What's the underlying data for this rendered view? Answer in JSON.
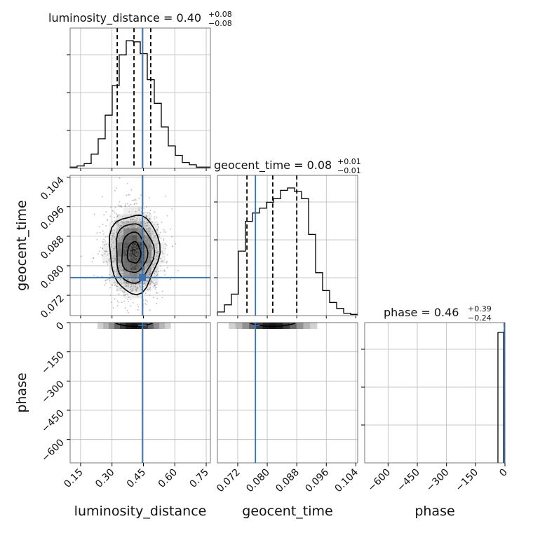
{
  "chart_data": {
    "type": "corner",
    "truth_color": "#3b73b0",
    "parameters": [
      {
        "name": "luminosity_distance",
        "title": "luminosity_distance = 0.40",
        "title_plus": "+0.08",
        "title_minus": "−0.08",
        "xlabel": "luminosity_distance",
        "range": [
          0.1,
          0.77
        ],
        "ticks": [
          0.15,
          0.3,
          0.45,
          0.6,
          0.75
        ],
        "tick_labels": [
          "0.15",
          "0.30",
          "0.45",
          "0.60",
          "0.75"
        ],
        "quantiles": [
          0.325,
          0.405,
          0.485
        ],
        "truth": 0.445,
        "hist": {
          "edges_start": 0.1,
          "bin_width": 0.0335,
          "counts": [
            1,
            2,
            4,
            12,
            25,
            45,
            70,
            96,
            108,
            107,
            97,
            75,
            55,
            35,
            19,
            11,
            5,
            3,
            1,
            1
          ]
        }
      },
      {
        "name": "geocent_time",
        "title": "geocent_time = 0.08",
        "title_plus": "+0.01",
        "title_minus": "−0.01",
        "xlabel": "geocent_time",
        "ylabel": "geocent_time",
        "range": [
          0.0665,
          0.1045
        ],
        "ticks": [
          0.072,
          0.08,
          0.088,
          0.096,
          0.104
        ],
        "tick_labels": [
          "0.072",
          "0.080",
          "0.088",
          "0.096",
          "0.104"
        ],
        "quantiles": [
          0.0745,
          0.0815,
          0.088
        ],
        "truth": 0.0768,
        "hist": {
          "edges_start": 0.0665,
          "bin_width": 0.0019,
          "counts": [
            3,
            9,
            18,
            54,
            79,
            86,
            90,
            95,
            98,
            105,
            107,
            104,
            98,
            68,
            36,
            21,
            11,
            6,
            2,
            1
          ]
        }
      },
      {
        "name": "phase",
        "title": "phase = 0.46",
        "title_plus": "+0.39",
        "title_minus": "−0.24",
        "xlabel": "phase",
        "ylabel": "phase",
        "range": [
          -720,
          0
        ],
        "ticks": [
          -600,
          -450,
          -300,
          -150,
          0
        ],
        "tick_labels": [
          "−600",
          "−450",
          "−300",
          "−150",
          "0"
        ],
        "quantiles": [
          0.22,
          0.46,
          0.85
        ],
        "truth": 0.46,
        "hist": {
          "edges_start": -720,
          "bin_width": 36,
          "counts": [
            0,
            0,
            0,
            0,
            0,
            0,
            0,
            0,
            0,
            0,
            0,
            0,
            0,
            0,
            0,
            0,
            0,
            0,
            0,
            108
          ]
        }
      }
    ],
    "scatter_2d": {
      "x_param": "luminosity_distance",
      "y_param": "geocent_time",
      "center": [
        0.405,
        0.0835
      ],
      "sigma": [
        0.058,
        0.0052
      ]
    },
    "grid": true
  }
}
